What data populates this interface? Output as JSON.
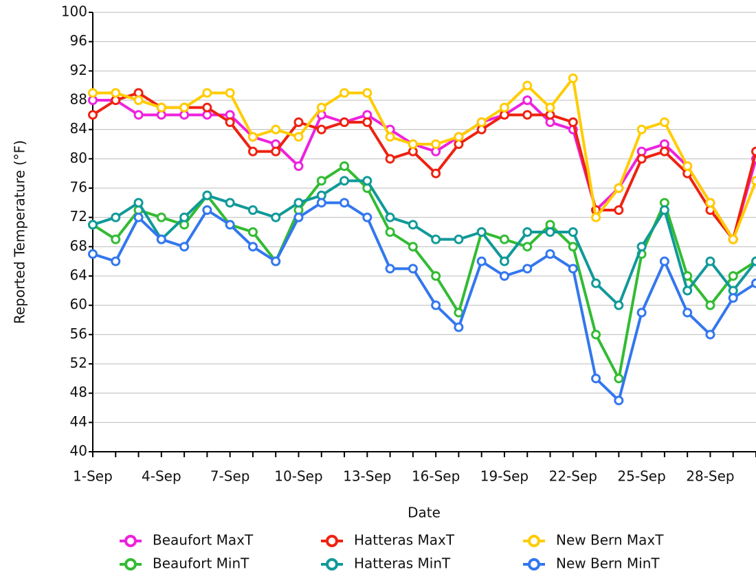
{
  "chart_data": {
    "type": "line",
    "x_label": "Date",
    "y_label": "Reported Temperature (°F)",
    "categories": [
      "1-Sep",
      null,
      null,
      "4-Sep",
      null,
      null,
      "7-Sep",
      null,
      null,
      "10-Sep",
      null,
      null,
      "13-Sep",
      null,
      null,
      "16-Sep",
      null,
      null,
      "19-Sep",
      null,
      null,
      "22-Sep",
      null,
      null,
      "25-Sep",
      null,
      null,
      "28-Sep",
      null,
      null
    ],
    "series": [
      {
        "name": "Beaufort MaxT",
        "color": "#ee22dd",
        "values": [
          88,
          88,
          86,
          86,
          86,
          86,
          86,
          83,
          82,
          79,
          86,
          85,
          86,
          84,
          82,
          81,
          83,
          85,
          86,
          88,
          85,
          84,
          73,
          76,
          81,
          82,
          79,
          74,
          69,
          80
        ]
      },
      {
        "name": "Hatteras MaxT",
        "color": "#ee2211",
        "values": [
          86,
          88,
          89,
          87,
          87,
          87,
          85,
          81,
          81,
          85,
          84,
          85,
          85,
          80,
          81,
          78,
          82,
          84,
          86,
          86,
          86,
          85,
          73,
          73,
          80,
          81,
          78,
          73,
          69,
          81
        ]
      },
      {
        "name": "New Bern MaxT",
        "color": "#ffcc00",
        "values": [
          89,
          89,
          88,
          87,
          87,
          89,
          89,
          83,
          84,
          83,
          87,
          89,
          89,
          83,
          82,
          82,
          83,
          85,
          87,
          90,
          87,
          91,
          72,
          76,
          84,
          85,
          79,
          74,
          69,
          77
        ]
      },
      {
        "name": "Beaufort MinT",
        "color": "#33bb33",
        "values": [
          71,
          69,
          73,
          72,
          71,
          75,
          71,
          70,
          66,
          73,
          77,
          79,
          76,
          70,
          68,
          64,
          59,
          70,
          69,
          68,
          71,
          68,
          56,
          50,
          67,
          74,
          64,
          60,
          64,
          66
        ]
      },
      {
        "name": "Hatteras MinT",
        "color": "#119999",
        "values": [
          71,
          72,
          74,
          69,
          72,
          75,
          74,
          73,
          72,
          74,
          75,
          77,
          77,
          72,
          71,
          69,
          69,
          70,
          66,
          70,
          70,
          70,
          63,
          60,
          68,
          73,
          62,
          66,
          62,
          66
        ]
      },
      {
        "name": "New Bern MinT",
        "color": "#3377ee",
        "values": [
          67,
          66,
          72,
          69,
          68,
          73,
          71,
          68,
          66,
          72,
          74,
          74,
          72,
          65,
          65,
          60,
          57,
          66,
          64,
          65,
          67,
          65,
          50,
          47,
          59,
          66,
          59,
          56,
          61,
          63
        ]
      }
    ],
    "ylim": [
      40,
      100
    ],
    "yticks": [
      40,
      44,
      48,
      52,
      56,
      60,
      64,
      68,
      72,
      76,
      80,
      84,
      88,
      92,
      96,
      100
    ],
    "grid": true,
    "legend": "bottom"
  }
}
